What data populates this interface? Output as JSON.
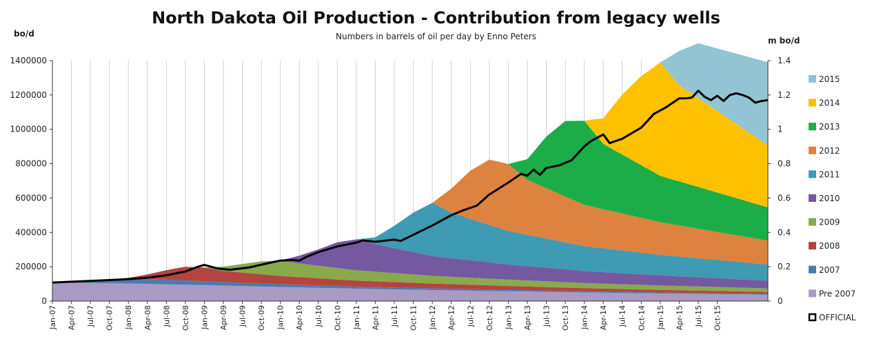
{
  "chart_data": {
    "type": "area",
    "title": "North Dakota Oil Production -  Contribution from legacy wells",
    "subtitle": "Numbers in barrels of oil per day     by Enno Peters",
    "ylabel": "bo/d",
    "ylabel_right": "m bo/d",
    "ylim": [
      0,
      1400000
    ],
    "ylim_right": [
      0,
      1.4
    ],
    "yticks": [
      "0",
      "200000",
      "400000",
      "600000",
      "800000",
      "1000000",
      "1200000",
      "1400000"
    ],
    "yticks_right": [
      "0",
      "0.2",
      "0.4",
      "0.6",
      "0.8",
      "1",
      "1.2",
      "1.4"
    ],
    "grid": "vertical",
    "stacked": true,
    "legend_position": "right",
    "x_labels": [
      "Jan-07",
      "Apr-07",
      "Jul-07",
      "Oct-07",
      "Jan-08",
      "Apr-08",
      "Jul-08",
      "Oct-08",
      "Jan-09",
      "Apr-09",
      "Jul-09",
      "Oct-09",
      "Jan-10",
      "Apr-10",
      "Jul-10",
      "Oct-10",
      "Jan-11",
      "Apr-11",
      "Jul-11",
      "Oct-11",
      "Jan-12",
      "Apr-12",
      "Jul-12",
      "Oct-12",
      "Jan-13",
      "Apr-13",
      "Jul-13",
      "Oct-13",
      "Jan-14",
      "Apr-14",
      "Jul-14",
      "Oct-14",
      "Jan-15",
      "Apr-15",
      "Jul-15",
      "Oct-15"
    ],
    "series": [
      {
        "name": "Pre 2007",
        "color": "#a99ac3",
        "points": [
          [
            0,
            108000
          ],
          [
            12,
            102000
          ],
          [
            24,
            93000
          ],
          [
            36,
            82000
          ],
          [
            48,
            72000
          ],
          [
            60,
            64000
          ],
          [
            72,
            57000
          ],
          [
            84,
            50000
          ],
          [
            96,
            44000
          ],
          [
            106,
            40000
          ]
        ]
      },
      {
        "name": "2007",
        "color": "#4a7ab5",
        "points": [
          [
            0,
            0
          ],
          [
            3,
            5000
          ],
          [
            6,
            14000
          ],
          [
            9,
            22000
          ],
          [
            12,
            33000
          ],
          [
            15,
            30000
          ],
          [
            24,
            22000
          ],
          [
            36,
            16000
          ],
          [
            48,
            12000
          ],
          [
            60,
            10000
          ],
          [
            72,
            8000
          ],
          [
            84,
            7000
          ],
          [
            96,
            6000
          ],
          [
            106,
            5000
          ]
        ]
      },
      {
        "name": "2008",
        "color": "#b4443f",
        "points": [
          [
            12,
            0
          ],
          [
            15,
            25000
          ],
          [
            18,
            55000
          ],
          [
            21,
            80000
          ],
          [
            24,
            80000
          ],
          [
            27,
            65000
          ],
          [
            36,
            48000
          ],
          [
            48,
            35000
          ],
          [
            60,
            28000
          ],
          [
            72,
            23000
          ],
          [
            84,
            18000
          ],
          [
            96,
            15000
          ],
          [
            106,
            13000
          ]
        ]
      },
      {
        "name": "2009",
        "color": "#89a94a",
        "points": [
          [
            24,
            0
          ],
          [
            27,
            25000
          ],
          [
            30,
            50000
          ],
          [
            33,
            75000
          ],
          [
            36,
            90000
          ],
          [
            39,
            80000
          ],
          [
            48,
            60000
          ],
          [
            60,
            45000
          ],
          [
            72,
            37000
          ],
          [
            84,
            30000
          ],
          [
            96,
            26000
          ],
          [
            106,
            23000
          ]
        ]
      },
      {
        "name": "2010",
        "color": "#7458a0",
        "points": [
          [
            36,
            0
          ],
          [
            39,
            45000
          ],
          [
            42,
            95000
          ],
          [
            45,
            150000
          ],
          [
            48,
            180000
          ],
          [
            51,
            160000
          ],
          [
            60,
            115000
          ],
          [
            72,
            88000
          ],
          [
            84,
            70000
          ],
          [
            96,
            58000
          ],
          [
            106,
            50000
          ]
        ]
      },
      {
        "name": "2011",
        "color": "#3f9ab3",
        "points": [
          [
            48,
            0
          ],
          [
            51,
            40000
          ],
          [
            54,
            130000
          ],
          [
            57,
            230000
          ],
          [
            60,
            310000
          ],
          [
            63,
            265000
          ],
          [
            72,
            195000
          ],
          [
            84,
            145000
          ],
          [
            96,
            120000
          ],
          [
            106,
            105000
          ]
        ]
      },
      {
        "name": "2012",
        "color": "#de833f",
        "points": [
          [
            60,
            0
          ],
          [
            63,
            140000
          ],
          [
            66,
            280000
          ],
          [
            69,
            380000
          ],
          [
            72,
            390000
          ],
          [
            75,
            320000
          ],
          [
            84,
            240000
          ],
          [
            96,
            190000
          ],
          [
            106,
            160000
          ]
        ]
      },
      {
        "name": "2013",
        "color": "#1cad48",
        "points": [
          [
            72,
            0
          ],
          [
            75,
            120000
          ],
          [
            78,
            300000
          ],
          [
            81,
            440000
          ],
          [
            84,
            490000
          ],
          [
            87,
            380000
          ],
          [
            96,
            270000
          ],
          [
            106,
            225000
          ]
        ]
      },
      {
        "name": "2014",
        "color": "#fdc100",
        "points": [
          [
            84,
            0
          ],
          [
            87,
            150000
          ],
          [
            90,
            350000
          ],
          [
            93,
            520000
          ],
          [
            96,
            660000
          ],
          [
            99,
            560000
          ],
          [
            106,
            460000
          ]
        ]
      },
      {
        "name": "2015",
        "color": "#92c4d4",
        "points": [
          [
            96,
            0
          ],
          [
            99,
            200000
          ],
          [
            102,
            320000
          ],
          [
            106,
            380000
          ]
        ]
      }
    ],
    "official": {
      "name": "OFFICIAL",
      "color": "#000000",
      "points": [
        [
          0,
          108000
        ],
        [
          6,
          117000
        ],
        [
          12,
          127000
        ],
        [
          15,
          136000
        ],
        [
          18,
          150000
        ],
        [
          21,
          172000
        ],
        [
          23,
          200000
        ],
        [
          24,
          210000
        ],
        [
          26,
          190000
        ],
        [
          28,
          182000
        ],
        [
          31,
          195000
        ],
        [
          34,
          220000
        ],
        [
          36,
          236000
        ],
        [
          38,
          239000
        ],
        [
          39,
          235000
        ],
        [
          40,
          255000
        ],
        [
          42,
          285000
        ],
        [
          45,
          318000
        ],
        [
          48,
          340000
        ],
        [
          49,
          353000
        ],
        [
          51,
          345000
        ],
        [
          54,
          358000
        ],
        [
          55,
          350000
        ],
        [
          57,
          386000
        ],
        [
          60,
          440000
        ],
        [
          63,
          500000
        ],
        [
          65,
          530000
        ],
        [
          67,
          555000
        ],
        [
          69,
          620000
        ],
        [
          72,
          690000
        ],
        [
          74,
          740000
        ],
        [
          75,
          730000
        ],
        [
          76,
          765000
        ],
        [
          77,
          735000
        ],
        [
          78,
          775000
        ],
        [
          80,
          790000
        ],
        [
          82,
          820000
        ],
        [
          84,
          900000
        ],
        [
          85,
          930000
        ],
        [
          86,
          950000
        ],
        [
          87,
          970000
        ],
        [
          88,
          920000
        ],
        [
          90,
          945000
        ],
        [
          93,
          1010000
        ],
        [
          95,
          1090000
        ],
        [
          97,
          1130000
        ],
        [
          99,
          1180000
        ],
        [
          100,
          1180000
        ],
        [
          101,
          1185000
        ],
        [
          102,
          1225000
        ],
        [
          103,
          1190000
        ],
        [
          104,
          1170000
        ],
        [
          105,
          1195000
        ],
        [
          106,
          1165000
        ],
        [
          107,
          1200000
        ],
        [
          108,
          1210000
        ],
        [
          109,
          1200000
        ],
        [
          110,
          1185000
        ],
        [
          111,
          1155000
        ],
        [
          112,
          1165000
        ],
        [
          113,
          1170000
        ]
      ]
    },
    "legend": [
      "2015",
      "2014",
      "2013",
      "2012",
      "2011",
      "2010",
      "2009",
      "2008",
      "2007",
      "Pre 2007",
      "OFFICIAL"
    ]
  }
}
